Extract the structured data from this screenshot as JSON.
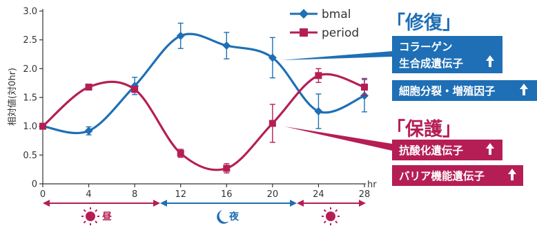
{
  "chart_data": {
    "type": "line",
    "ylabel": "相対値(対0hr)",
    "xunit": "hr",
    "ylim": [
      0,
      3.0
    ],
    "xlim": [
      0,
      28
    ],
    "x_ticks": [
      0,
      4,
      8,
      12,
      16,
      20,
      24,
      28
    ],
    "y_ticks": [
      "0",
      "0.5",
      "1.0",
      "1.5",
      "2.0",
      "2.5",
      "3.0"
    ],
    "series": [
      {
        "name": "bmal",
        "color": "#1e6fb5",
        "marker": "diamond",
        "x": [
          0,
          4,
          8,
          12,
          16,
          20,
          24,
          28
        ],
        "y": [
          1.0,
          0.92,
          1.7,
          2.57,
          2.4,
          2.19,
          1.26,
          1.53
        ],
        "err": [
          0.05,
          0.07,
          0.15,
          0.22,
          0.23,
          0.35,
          0.3,
          0.28
        ]
      },
      {
        "name": "period",
        "color": "#b51e55",
        "marker": "square",
        "x": [
          0,
          4,
          8,
          12,
          16,
          20,
          24,
          28
        ],
        "y": [
          1.0,
          1.68,
          1.64,
          0.53,
          0.27,
          1.05,
          1.88,
          1.68
        ],
        "err": [
          0.05,
          0.03,
          0.05,
          0.07,
          0.08,
          0.33,
          0.12,
          0.15
        ]
      }
    ],
    "legend_position": "top-right",
    "grid": false
  },
  "annotations": {
    "repair": {
      "heading": "「修復」",
      "color": "#1e6fb5",
      "boxes": [
        "コラーゲン",
        "生合成遺伝子",
        "細胞分裂・増殖因子"
      ]
    },
    "protect": {
      "heading": "「保護」",
      "color": "#b51e55",
      "boxes": [
        "抗酸化遺伝子",
        "バリア機能遺伝子"
      ]
    }
  },
  "periods": [
    {
      "label": "昼",
      "icon": "sun-icon",
      "color": "#b51e55"
    },
    {
      "label": "夜",
      "icon": "moon-icon",
      "color": "#1e6fb5"
    },
    {
      "label": "",
      "icon": "sun-icon",
      "color": "#b51e55"
    }
  ]
}
